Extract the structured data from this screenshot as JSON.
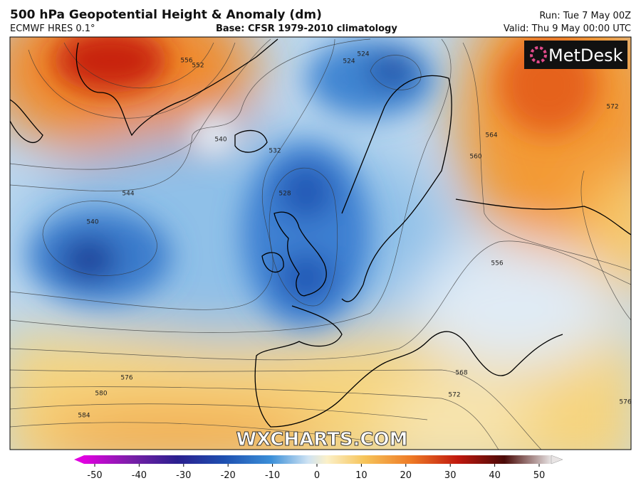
{
  "header": {
    "title": "500 hPa Geopotential Height & Anomaly (dm)",
    "model": "ECMWF HRES 0.1°",
    "base": "Base: CFSR 1979-2010 climatology",
    "run": "Run: Tue 7 May 00Z",
    "valid": "Valid: Thu 9 May 00:00 UTC"
  },
  "logo": "MetDesk",
  "watermark": "WXCHARTS.COM",
  "contour_labels": [
    556,
    552,
    524,
    524,
    540,
    532,
    544,
    540,
    528,
    564,
    560,
    556,
    572,
    568,
    572,
    576,
    580,
    584,
    576
  ],
  "colorbar": {
    "range": [
      -50,
      50
    ],
    "ticks": [
      -50,
      -40,
      -30,
      -20,
      -10,
      0,
      10,
      20,
      30,
      40,
      50
    ]
  }
}
